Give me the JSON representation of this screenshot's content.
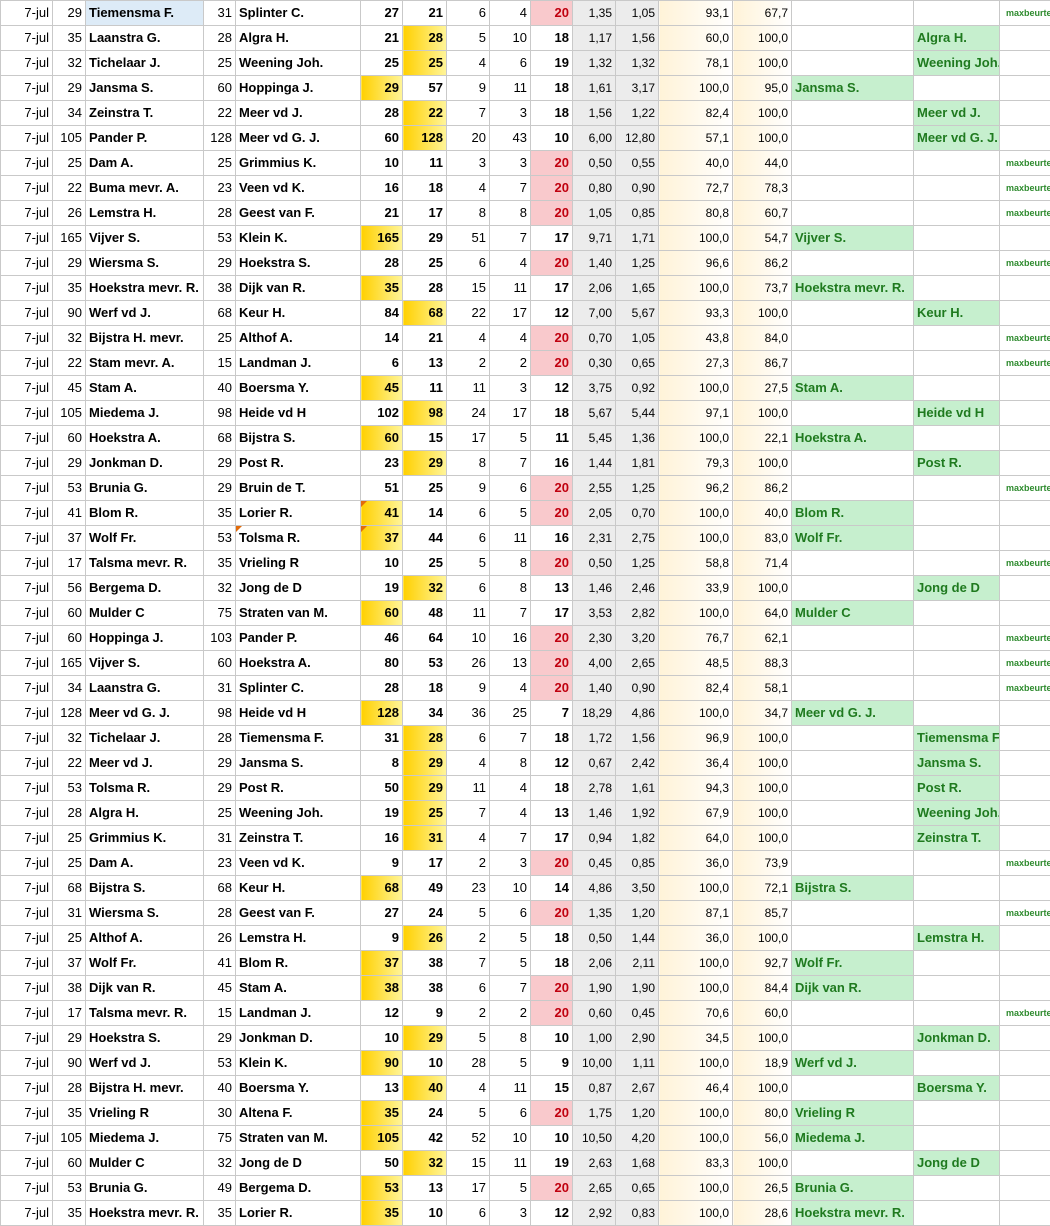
{
  "sheet": {
    "rows": [
      [
        "7-jul",
        "29",
        "Tiemensma F.",
        "31",
        "Splinter C.",
        "27",
        "21",
        "6",
        "4",
        "20",
        "1,35",
        "1,05",
        "93,1",
        "67,7",
        "",
        "",
        "maxbeurten"
      ],
      [
        "7-jul",
        "35",
        "Laanstra G.",
        "28",
        "Algra H.",
        "21",
        "28",
        "5",
        "10",
        "18",
        "1,17",
        "1,56",
        "60,0",
        "100,0",
        "",
        "Algra H.",
        ""
      ],
      [
        "7-jul",
        "32",
        "Tichelaar J.",
        "25",
        "Weening Joh.",
        "25",
        "25",
        "4",
        "6",
        "19",
        "1,32",
        "1,32",
        "78,1",
        "100,0",
        "",
        "Weening Joh.",
        ""
      ],
      [
        "7-jul",
        "29",
        "Jansma S.",
        "60",
        "Hoppinga J.",
        "29",
        "57",
        "9",
        "11",
        "18",
        "1,61",
        "3,17",
        "100,0",
        "95,0",
        "Jansma S.",
        "",
        ""
      ],
      [
        "7-jul",
        "34",
        "Zeinstra T.",
        "22",
        "Meer vd J.",
        "28",
        "22",
        "7",
        "3",
        "18",
        "1,56",
        "1,22",
        "82,4",
        "100,0",
        "",
        "Meer vd J.",
        ""
      ],
      [
        "7-jul",
        "105",
        "Pander P.",
        "128",
        "Meer vd  G. J.",
        "60",
        "128",
        "20",
        "43",
        "10",
        "6,00",
        "12,80",
        "57,1",
        "100,0",
        "",
        "Meer vd  G. J.",
        ""
      ],
      [
        "7-jul",
        "25",
        "Dam A.",
        "25",
        "Grimmius K.",
        "10",
        "11",
        "3",
        "3",
        "20",
        "0,50",
        "0,55",
        "40,0",
        "44,0",
        "",
        "",
        "maxbeurten"
      ],
      [
        "7-jul",
        "22",
        "Buma mevr. A.",
        "23",
        "Veen vd K.",
        "16",
        "18",
        "4",
        "7",
        "20",
        "0,80",
        "0,90",
        "72,7",
        "78,3",
        "",
        "",
        "maxbeurten"
      ],
      [
        "7-jul",
        "26",
        "Lemstra H.",
        "28",
        "Geest van F.",
        "21",
        "17",
        "8",
        "8",
        "20",
        "1,05",
        "0,85",
        "80,8",
        "60,7",
        "",
        "",
        "maxbeurten"
      ],
      [
        "7-jul",
        "165",
        "Vijver S.",
        "53",
        "Klein K.",
        "165",
        "29",
        "51",
        "7",
        "17",
        "9,71",
        "1,71",
        "100,0",
        "54,7",
        "Vijver S.",
        "",
        ""
      ],
      [
        "7-jul",
        "29",
        "Wiersma S.",
        "29",
        "Hoekstra S.",
        "28",
        "25",
        "6",
        "4",
        "20",
        "1,40",
        "1,25",
        "96,6",
        "86,2",
        "",
        "",
        "maxbeurten"
      ],
      [
        "7-jul",
        "35",
        "Hoekstra mevr. R.",
        "38",
        "Dijk van R.",
        "35",
        "28",
        "15",
        "11",
        "17",
        "2,06",
        "1,65",
        "100,0",
        "73,7",
        "Hoekstra mevr. R.",
        "",
        ""
      ],
      [
        "7-jul",
        "90",
        "Werf vd J.",
        "68",
        "Keur H.",
        "84",
        "68",
        "22",
        "17",
        "12",
        "7,00",
        "5,67",
        "93,3",
        "100,0",
        "",
        "Keur H.",
        ""
      ],
      [
        "7-jul",
        "32",
        "Bijstra H. mevr.",
        "25",
        "Althof A.",
        "14",
        "21",
        "4",
        "4",
        "20",
        "0,70",
        "1,05",
        "43,8",
        "84,0",
        "",
        "",
        "maxbeurten"
      ],
      [
        "7-jul",
        "22",
        "Stam mevr. A.",
        "15",
        "Landman J.",
        "6",
        "13",
        "2",
        "2",
        "20",
        "0,30",
        "0,65",
        "27,3",
        "86,7",
        "",
        "",
        "maxbeurten"
      ],
      [
        "7-jul",
        "45",
        "Stam A.",
        "40",
        "Boersma Y.",
        "45",
        "11",
        "11",
        "3",
        "12",
        "3,75",
        "0,92",
        "100,0",
        "27,5",
        "Stam A.",
        "",
        ""
      ],
      [
        "7-jul",
        "105",
        "Miedema J.",
        "98",
        "Heide vd H",
        "102",
        "98",
        "24",
        "17",
        "18",
        "5,67",
        "5,44",
        "97,1",
        "100,0",
        "",
        "Heide vd H",
        ""
      ],
      [
        "7-jul",
        "60",
        "Hoekstra A.",
        "68",
        "Bijstra S.",
        "60",
        "15",
        "17",
        "5",
        "11",
        "5,45",
        "1,36",
        "100,0",
        "22,1",
        "Hoekstra A.",
        "",
        ""
      ],
      [
        "7-jul",
        "29",
        "Jonkman D.",
        "29",
        "Post R.",
        "23",
        "29",
        "8",
        "7",
        "16",
        "1,44",
        "1,81",
        "79,3",
        "100,0",
        "",
        "Post R.",
        ""
      ],
      [
        "7-jul",
        "53",
        "Brunia G.",
        "29",
        "Bruin de T.",
        "51",
        "25",
        "9",
        "6",
        "20",
        "2,55",
        "1,25",
        "96,2",
        "86,2",
        "",
        "",
        "maxbeurten"
      ],
      [
        "7-jul",
        "41",
        "Blom R.",
        "35",
        "Lorier R.",
        "41",
        "14",
        "6",
        "5",
        "20",
        "2,05",
        "0,70",
        "100,0",
        "40,0",
        "Blom R.",
        "",
        ""
      ],
      [
        "7-jul",
        "37",
        "Wolf Fr.",
        "53",
        "Tolsma R.",
        "37",
        "44",
        "6",
        "11",
        "16",
        "2,31",
        "2,75",
        "100,0",
        "83,0",
        "Wolf Fr.",
        "",
        ""
      ],
      [
        "7-jul",
        "17",
        "Talsma mevr. R.",
        "35",
        "Vrieling R",
        "10",
        "25",
        "5",
        "8",
        "20",
        "0,50",
        "1,25",
        "58,8",
        "71,4",
        "",
        "",
        "maxbeurten"
      ],
      [
        "7-jul",
        "56",
        "Bergema D.",
        "32",
        "Jong de D",
        "19",
        "32",
        "6",
        "8",
        "13",
        "1,46",
        "2,46",
        "33,9",
        "100,0",
        "",
        "Jong de D",
        ""
      ],
      [
        "7-jul",
        "60",
        "Mulder C",
        "75",
        "Straten van M.",
        "60",
        "48",
        "11",
        "7",
        "17",
        "3,53",
        "2,82",
        "100,0",
        "64,0",
        "Mulder C",
        "",
        ""
      ],
      [
        "7-jul",
        "60",
        "Hoppinga J.",
        "103",
        "Pander P.",
        "46",
        "64",
        "10",
        "16",
        "20",
        "2,30",
        "3,20",
        "76,7",
        "62,1",
        "",
        "",
        "maxbeurten"
      ],
      [
        "7-jul",
        "165",
        "Vijver S.",
        "60",
        "Hoekstra A.",
        "80",
        "53",
        "26",
        "13",
        "20",
        "4,00",
        "2,65",
        "48,5",
        "88,3",
        "",
        "",
        "maxbeurten"
      ],
      [
        "7-jul",
        "34",
        "Laanstra G.",
        "31",
        "Splinter C.",
        "28",
        "18",
        "9",
        "4",
        "20",
        "1,40",
        "0,90",
        "82,4",
        "58,1",
        "",
        "",
        "maxbeurten"
      ],
      [
        "7-jul",
        "128",
        "Meer vd  G. J.",
        "98",
        "Heide vd H",
        "128",
        "34",
        "36",
        "25",
        "7",
        "18,29",
        "4,86",
        "100,0",
        "34,7",
        "Meer vd  G. J.",
        "",
        ""
      ],
      [
        "7-jul",
        "32",
        "Tichelaar J.",
        "28",
        "Tiemensma F.",
        "31",
        "28",
        "6",
        "7",
        "18",
        "1,72",
        "1,56",
        "96,9",
        "100,0",
        "",
        "Tiemensma F",
        ""
      ],
      [
        "7-jul",
        "22",
        "Meer vd J.",
        "29",
        "Jansma S.",
        "8",
        "29",
        "4",
        "8",
        "12",
        "0,67",
        "2,42",
        "36,4",
        "100,0",
        "",
        "Jansma S.",
        ""
      ],
      [
        "7-jul",
        "53",
        "Tolsma R.",
        "29",
        "Post R.",
        "50",
        "29",
        "11",
        "4",
        "18",
        "2,78",
        "1,61",
        "94,3",
        "100,0",
        "",
        "Post R.",
        ""
      ],
      [
        "7-jul",
        "28",
        "Algra H.",
        "25",
        "Weening Joh.",
        "19",
        "25",
        "7",
        "4",
        "13",
        "1,46",
        "1,92",
        "67,9",
        "100,0",
        "",
        "Weening Joh.",
        ""
      ],
      [
        "7-jul",
        "25",
        "Grimmius K.",
        "31",
        "Zeinstra T.",
        "16",
        "31",
        "4",
        "7",
        "17",
        "0,94",
        "1,82",
        "64,0",
        "100,0",
        "",
        "Zeinstra T.",
        ""
      ],
      [
        "7-jul",
        "25",
        "Dam A.",
        "23",
        "Veen vd K.",
        "9",
        "17",
        "2",
        "3",
        "20",
        "0,45",
        "0,85",
        "36,0",
        "73,9",
        "",
        "",
        "maxbeurten"
      ],
      [
        "7-jul",
        "68",
        "Bijstra S.",
        "68",
        "Keur H.",
        "68",
        "49",
        "23",
        "10",
        "14",
        "4,86",
        "3,50",
        "100,0",
        "72,1",
        "Bijstra S.",
        "",
        ""
      ],
      [
        "7-jul",
        "31",
        "Wiersma S.",
        "28",
        "Geest van F.",
        "27",
        "24",
        "5",
        "6",
        "20",
        "1,35",
        "1,20",
        "87,1",
        "85,7",
        "",
        "",
        "maxbeurten"
      ],
      [
        "7-jul",
        "25",
        "Althof A.",
        "26",
        "Lemstra H.",
        "9",
        "26",
        "2",
        "5",
        "18",
        "0,50",
        "1,44",
        "36,0",
        "100,0",
        "",
        "Lemstra H.",
        ""
      ],
      [
        "7-jul",
        "37",
        "Wolf Fr.",
        "41",
        "Blom R.",
        "37",
        "38",
        "7",
        "5",
        "18",
        "2,06",
        "2,11",
        "100,0",
        "92,7",
        "Wolf Fr.",
        "",
        ""
      ],
      [
        "7-jul",
        "38",
        "Dijk van R.",
        "45",
        "Stam A.",
        "38",
        "38",
        "6",
        "7",
        "20",
        "1,90",
        "1,90",
        "100,0",
        "84,4",
        "Dijk van R.",
        "",
        ""
      ],
      [
        "7-jul",
        "17",
        "Talsma mevr. R.",
        "15",
        "Landman J.",
        "12",
        "9",
        "2",
        "2",
        "20",
        "0,60",
        "0,45",
        "70,6",
        "60,0",
        "",
        "",
        "maxbeurten"
      ],
      [
        "7-jul",
        "29",
        "Hoekstra S.",
        "29",
        "Jonkman D.",
        "10",
        "29",
        "5",
        "8",
        "10",
        "1,00",
        "2,90",
        "34,5",
        "100,0",
        "",
        "Jonkman D.",
        ""
      ],
      [
        "7-jul",
        "90",
        "Werf vd J.",
        "53",
        "Klein K.",
        "90",
        "10",
        "28",
        "5",
        "9",
        "10,00",
        "1,11",
        "100,0",
        "18,9",
        "Werf vd J.",
        "",
        ""
      ],
      [
        "7-jul",
        "28",
        "Bijstra H. mevr.",
        "40",
        "Boersma Y.",
        "13",
        "40",
        "4",
        "11",
        "15",
        "0,87",
        "2,67",
        "46,4",
        "100,0",
        "",
        "Boersma Y.",
        ""
      ],
      [
        "7-jul",
        "35",
        "Vrieling R",
        "30",
        "Altena F.",
        "35",
        "24",
        "5",
        "6",
        "20",
        "1,75",
        "1,20",
        "100,0",
        "80,0",
        "Vrieling R",
        "",
        ""
      ],
      [
        "7-jul",
        "105",
        "Miedema J.",
        "75",
        "Straten van M.",
        "105",
        "42",
        "52",
        "10",
        "10",
        "10,50",
        "4,20",
        "100,0",
        "56,0",
        "Miedema J.",
        "",
        ""
      ],
      [
        "7-jul",
        "60",
        "Mulder C",
        "32",
        "Jong de D",
        "50",
        "32",
        "15",
        "11",
        "19",
        "2,63",
        "1,68",
        "83,3",
        "100,0",
        "",
        "Jong de D",
        ""
      ],
      [
        "7-jul",
        "53",
        "Brunia G.",
        "49",
        "Bergema D.",
        "53",
        "13",
        "17",
        "5",
        "20",
        "2,65",
        "0,65",
        "100,0",
        "26,5",
        "Brunia G.",
        "",
        ""
      ],
      [
        "7-jul",
        "35",
        "Hoekstra mevr. R.",
        "35",
        "Lorier R.",
        "35",
        "10",
        "6",
        "3",
        "12",
        "2,92",
        "0,83",
        "100,0",
        "28,6",
        "Hoekstra mevr. R.",
        "",
        ""
      ]
    ]
  }
}
